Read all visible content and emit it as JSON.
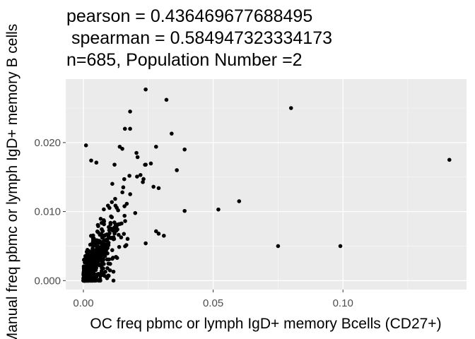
{
  "chart_data": {
    "type": "scatter",
    "title_lines": [
      "pearson = 0.436469677688495",
      " spearman = 0.584947323334173",
      "n=685, Population Number =2"
    ],
    "xlabel": "OC freq pbmc or lymph IgD+ memory Bcells (CD27+)",
    "ylabel": "Manual freq pbmc or lymph IgD+ memory B cells",
    "xlim": [
      -0.0068,
      0.1476
    ],
    "ylim": [
      -0.0013,
      0.0292
    ],
    "xticks": [
      0.0,
      0.05,
      0.1
    ],
    "xtick_labels": [
      "0.00",
      "0.05",
      "0.10"
    ],
    "yticks": [
      0.0,
      0.01,
      0.02
    ],
    "ytick_labels": [
      "0.000",
      "0.010",
      "0.020"
    ],
    "grid": true,
    "colors": {
      "panel": "#ebebeb",
      "grid_major": "#ffffff",
      "grid_minor": "#f5f5f5",
      "point": "#000000",
      "tick_text": "#4d4d4d"
    },
    "points": [
      [
        0.024,
        0.0277
      ],
      [
        0.032,
        0.0262
      ],
      [
        0.08,
        0.025
      ],
      [
        0.018,
        0.0245
      ],
      [
        0.016,
        0.022
      ],
      [
        0.018,
        0.022
      ],
      [
        0.034,
        0.0213
      ],
      [
        0.001,
        0.0196
      ],
      [
        0.014,
        0.0194
      ],
      [
        0.015,
        0.0191
      ],
      [
        0.028,
        0.0194
      ],
      [
        0.039,
        0.019
      ],
      [
        0.141,
        0.0175
      ],
      [
        0.003,
        0.0174
      ],
      [
        0.005,
        0.0171
      ],
      [
        0.012,
        0.0168
      ],
      [
        0.024,
        0.0168
      ],
      [
        0.036,
        0.016
      ],
      [
        0.022,
        0.0153
      ],
      [
        0.027,
        0.0136
      ],
      [
        0.029,
        0.0134
      ],
      [
        0.06,
        0.0115
      ],
      [
        0.052,
        0.0103
      ],
      [
        0.039,
        0.0101
      ],
      [
        0.029,
        0.0068
      ],
      [
        0.031,
        0.0065
      ],
      [
        0.024,
        0.0054
      ],
      [
        0.075,
        0.005
      ],
      [
        0.099,
        0.005
      ]
    ]
  }
}
